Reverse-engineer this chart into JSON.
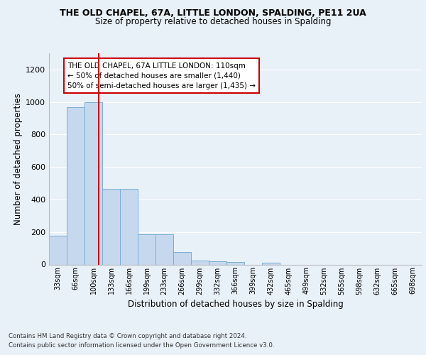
{
  "title": "THE OLD CHAPEL, 67A, LITTLE LONDON, SPALDING, PE11 2UA",
  "subtitle": "Size of property relative to detached houses in Spalding",
  "xlabel": "Distribution of detached houses by size in Spalding",
  "ylabel": "Number of detached properties",
  "bin_labels": [
    "33sqm",
    "66sqm",
    "100sqm",
    "133sqm",
    "166sqm",
    "199sqm",
    "233sqm",
    "266sqm",
    "299sqm",
    "332sqm",
    "366sqm",
    "399sqm",
    "432sqm",
    "465sqm",
    "499sqm",
    "532sqm",
    "565sqm",
    "598sqm",
    "632sqm",
    "665sqm",
    "698sqm"
  ],
  "bar_heights": [
    175,
    970,
    1000,
    465,
    465,
    185,
    185,
    75,
    25,
    20,
    15,
    0,
    10,
    0,
    0,
    0,
    0,
    0,
    0,
    0,
    0
  ],
  "bar_color": "#c5d8ee",
  "bar_edge_color": "#7aaed4",
  "background_color": "#e8f0f8",
  "grid_color": "#ffffff",
  "red_line_x": 2.303,
  "red_line_color": "#cc0000",
  "annotation_text": "THE OLD CHAPEL, 67A LITTLE LONDON: 110sqm\n← 50% of detached houses are smaller (1,440)\n50% of semi-detached houses are larger (1,435) →",
  "annotation_box_color": "#ffffff",
  "annotation_box_edge": "#cc0000",
  "ylim": [
    0,
    1300
  ],
  "yticks": [
    0,
    200,
    400,
    600,
    800,
    1000,
    1200
  ],
  "footnote1": "Contains HM Land Registry data © Crown copyright and database right 2024.",
  "footnote2": "Contains public sector information licensed under the Open Government Licence v3.0."
}
